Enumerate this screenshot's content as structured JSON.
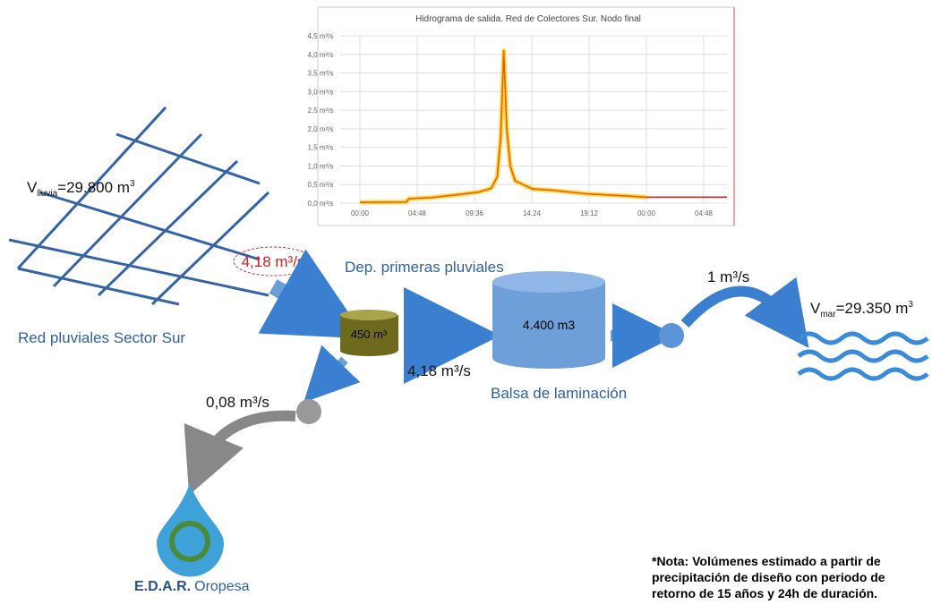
{
  "rain_volume": {
    "symbol": "V",
    "subscript": "lluvia",
    "value": "=29.800 m",
    "superscript": "3"
  },
  "network_flow": "4,18 m³/s",
  "network_label": "Red pluviales Sector Sur",
  "first_flush_tank": {
    "title": "Dep. primeras pluviales",
    "volume": "450 m³"
  },
  "tank_outflow": "4,18 m³/s",
  "lamination_pond": {
    "volume": "4.400 m3",
    "label": "Balsa de laminación"
  },
  "pond_outflow": "1 m³/s",
  "sea_volume": {
    "symbol": "V",
    "subscript": "mar",
    "value": "=29.350 m",
    "superscript": "3"
  },
  "wwtp_flow": "0,08 m³/s",
  "wwtp": {
    "acronym": "E.D.A.R.",
    "name": "Oropesa"
  },
  "note": [
    "*Nota: Volúmenes estimado a partir de",
    "precipitación de diseño con periodo de",
    "retorno de 15 años y 24h de duración."
  ],
  "chart_data": {
    "type": "line",
    "title": "Hidrograma de salida. Red de Colectores Sur. Nodo final",
    "xlim": [
      -1.65,
      30.75
    ],
    "ylim": [
      0,
      4.5
    ],
    "grid": true,
    "xticks": [
      {
        "value": 0,
        "label": "00:00"
      },
      {
        "value": 4.8,
        "label": "04:48"
      },
      {
        "value": 9.6,
        "label": "09:36"
      },
      {
        "value": 14.4,
        "label": "14:24"
      },
      {
        "value": 19.2,
        "label": "19:12"
      },
      {
        "value": 24,
        "label": "00:00"
      },
      {
        "value": 28.8,
        "label": "04:48"
      }
    ],
    "yticks": [
      {
        "value": 0,
        "label": "0,0 m³/s"
      },
      {
        "value": 0.5,
        "label": "0,5 m³/s"
      },
      {
        "value": 1,
        "label": "1,0 m³/s"
      },
      {
        "value": 1.5,
        "label": "1,5 m³/s"
      },
      {
        "value": 2,
        "label": "2,0 m³/s"
      },
      {
        "value": 2.5,
        "label": "2,5 m³/s"
      },
      {
        "value": 3,
        "label": "3,0 m³/s"
      },
      {
        "value": 3.5,
        "label": "3,5 m³/s"
      },
      {
        "value": 4,
        "label": "4,0 m³/s"
      },
      {
        "value": 4.5,
        "label": "4,5 m³/s"
      }
    ],
    "series": [
      {
        "color": "#e8600c",
        "x": [
          0,
          3.9,
          4.1,
          6,
          8,
          10,
          11,
          11.5,
          11.8,
          12.05,
          12.3,
          12.6,
          13,
          14,
          14.5,
          16,
          19,
          22,
          24
        ],
        "values": [
          0.02,
          0.03,
          0.12,
          0.15,
          0.22,
          0.3,
          0.4,
          0.7,
          1.8,
          4.1,
          2.0,
          1.0,
          0.6,
          0.45,
          0.38,
          0.35,
          0.25,
          0.2,
          0.16
        ]
      },
      {
        "color": "#e02020",
        "x": [
          24,
          30.75
        ],
        "values": [
          0.16,
          0.16
        ]
      }
    ]
  }
}
